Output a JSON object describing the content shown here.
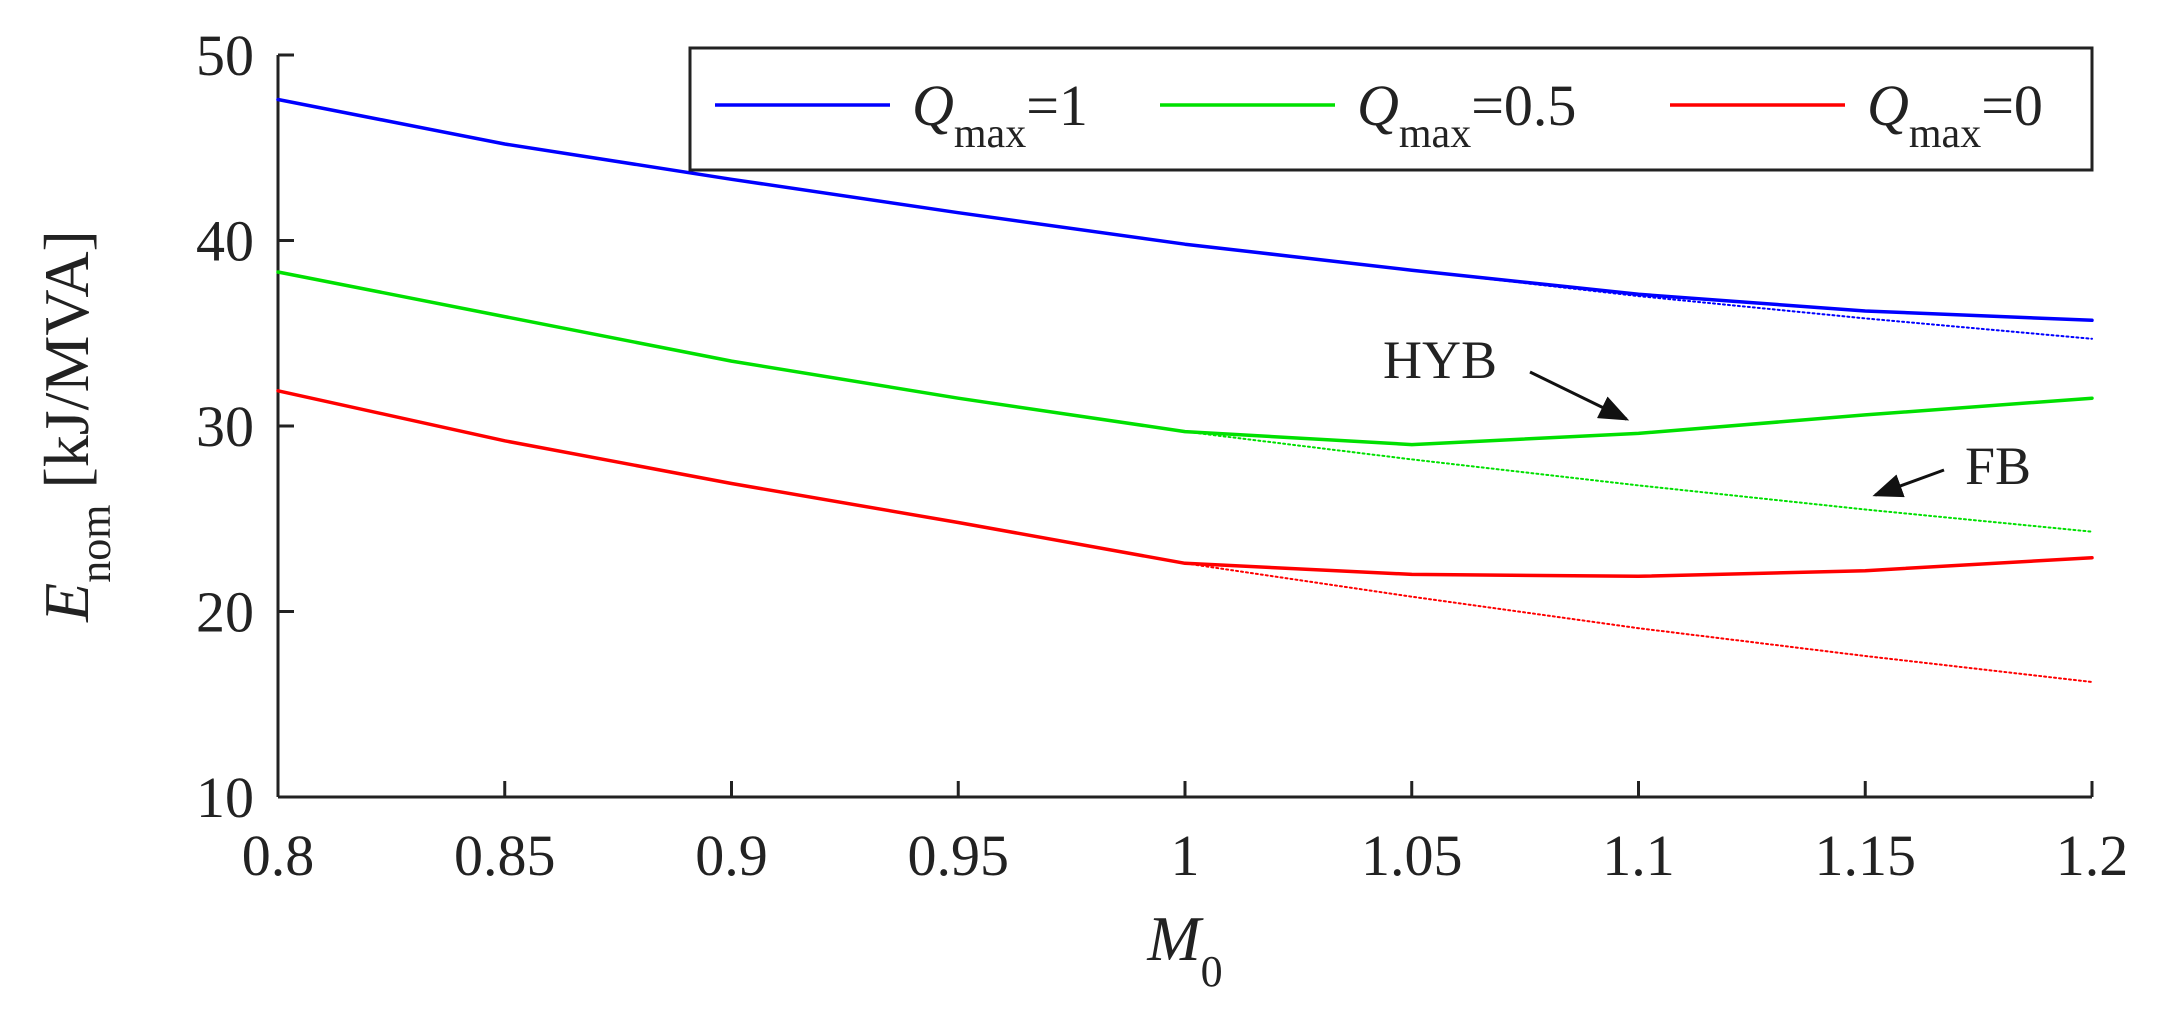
{
  "chart_data": {
    "type": "line",
    "x_axis": {
      "title": "M",
      "title_subscript": "0",
      "min": 0.8,
      "max": 1.2,
      "ticks": [
        0.8,
        0.85,
        0.9,
        0.95,
        1,
        1.05,
        1.1,
        1.15,
        1.2
      ],
      "tick_labels": [
        "0.8",
        "0.85",
        "0.9",
        "0.95",
        "1",
        "1.05",
        "1.1",
        "1.15",
        "1.2"
      ]
    },
    "y_axis": {
      "title": "E",
      "title_subscript": "nom",
      "title_unit": "[kJ/MVA]",
      "min": 10,
      "max": 50,
      "ticks": [
        10,
        20,
        30,
        40,
        50
      ],
      "tick_labels": [
        "10",
        "20",
        "30",
        "40",
        "50"
      ]
    },
    "grid": false,
    "legend": {
      "placement": "top-right",
      "entries": [
        {
          "label_main": "Q",
          "label_sub": "max",
          "label_value": "=1",
          "color": "#0000ff"
        },
        {
          "label_main": "Q",
          "label_sub": "max",
          "label_value": "=0.5",
          "color": "#00e000"
        },
        {
          "label_main": "Q",
          "label_sub": "max",
          "label_value": "=0",
          "color": "#ff0000"
        }
      ]
    },
    "series": [
      {
        "legend_index": 0,
        "style": "solid",
        "color": "#0000ff",
        "x": [
          0.8,
          0.85,
          0.9,
          0.95,
          1.0,
          1.05,
          1.1,
          1.15,
          1.2
        ],
        "y": [
          47.6,
          45.2,
          43.3,
          41.5,
          39.8,
          38.4,
          37.1,
          36.2,
          35.7
        ]
      },
      {
        "legend_index": 0,
        "style": "dotted",
        "color": "#0000ff",
        "x": [
          0.8,
          0.85,
          0.9,
          0.95,
          1.0,
          1.05,
          1.1,
          1.15,
          1.2
        ],
        "y": [
          47.6,
          45.2,
          43.3,
          41.5,
          39.8,
          38.4,
          37.0,
          35.8,
          34.7
        ]
      },
      {
        "legend_index": 1,
        "style": "solid",
        "color": "#00e000",
        "x": [
          0.8,
          0.85,
          0.9,
          0.95,
          1.0,
          1.05,
          1.1,
          1.15,
          1.2
        ],
        "y": [
          38.3,
          35.9,
          33.5,
          31.5,
          29.7,
          29.0,
          29.6,
          30.6,
          31.5
        ]
      },
      {
        "legend_index": 1,
        "style": "dotted",
        "color": "#00e000",
        "x": [
          0.8,
          0.85,
          0.9,
          0.95,
          1.0,
          1.05,
          1.1,
          1.15,
          1.2
        ],
        "y": [
          38.3,
          35.9,
          33.5,
          31.5,
          29.7,
          28.2,
          26.8,
          25.5,
          24.3
        ]
      },
      {
        "legend_index": 2,
        "style": "solid",
        "color": "#ff0000",
        "x": [
          0.8,
          0.85,
          0.9,
          0.95,
          1.0,
          1.05,
          1.1,
          1.15,
          1.2
        ],
        "y": [
          31.9,
          29.2,
          26.9,
          24.8,
          22.6,
          22.0,
          21.9,
          22.2,
          22.9
        ]
      },
      {
        "legend_index": 2,
        "style": "dotted",
        "color": "#ff0000",
        "x": [
          0.8,
          0.85,
          0.9,
          0.95,
          1.0,
          1.05,
          1.1,
          1.15,
          1.2
        ],
        "y": [
          31.9,
          29.2,
          26.9,
          24.8,
          22.6,
          20.8,
          19.1,
          17.6,
          16.2
        ]
      }
    ],
    "annotations": [
      {
        "text": "HYB",
        "points_to": "solid curves",
        "arrow_tip_x": 1.1,
        "arrow_tip_y": 29.4
      },
      {
        "text": "FB",
        "points_to": "dotted curves",
        "arrow_tip_x": 1.15,
        "arrow_tip_y": 26.6
      }
    ]
  }
}
